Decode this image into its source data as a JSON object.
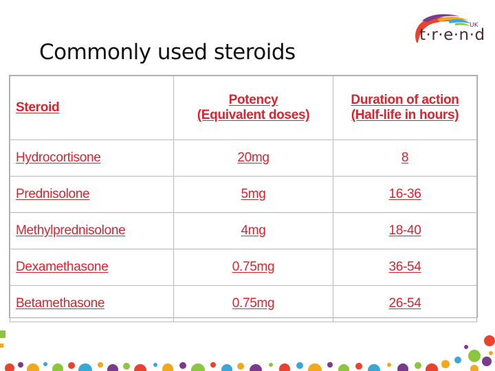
{
  "slide": {
    "title": "Commonly used steroids"
  },
  "logo": {
    "word": "t·r·e·n·d",
    "suffix": "UK"
  },
  "table": {
    "headers": {
      "steroid": "Steroid",
      "potency_line1": "Potency",
      "potency_line2": "(Equivalent doses)",
      "duration_line1": "Duration of action",
      "duration_line2": "(Half-life in hours)"
    },
    "rows": [
      {
        "name": "Hydrocortisone",
        "potency": "20mg",
        "duration": "8"
      },
      {
        "name": "Prednisolone",
        "potency": "5mg",
        "duration": "16-36"
      },
      {
        "name": "Methylprednisolone",
        "potency": "4mg",
        "duration": "18-40"
      },
      {
        "name": "Dexamethasone",
        "potency": "0.75mg",
        "duration": "36-54"
      },
      {
        "name": "Betamethasone",
        "potency": "0.75mg",
        "duration": "26-54"
      }
    ]
  },
  "colors": {
    "table_text": "#d9232e",
    "grid": "#b9b9b9",
    "title": "#111111"
  }
}
